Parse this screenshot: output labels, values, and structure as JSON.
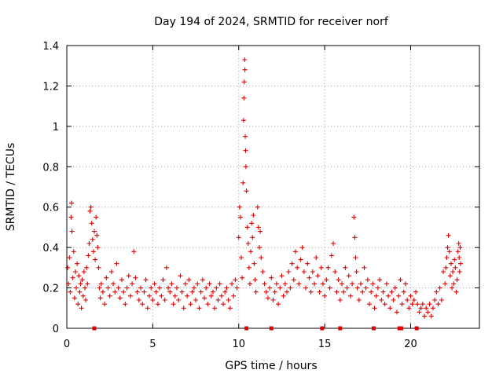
{
  "chart_data": {
    "type": "scatter",
    "title": "Day 194 of 2024, SRMTID for receiver norf",
    "xlabel": "GPS time / hours",
    "ylabel": "SRMTID / TECUs",
    "xlim": [
      0,
      24
    ],
    "ylim": [
      0,
      1.4
    ],
    "xticks": [
      0,
      5,
      10,
      15,
      20
    ],
    "yticks": [
      0,
      0.2,
      0.4,
      0.6,
      0.8,
      1,
      1.2,
      1.4
    ],
    "xtick_labels": [
      "0",
      "5",
      "10",
      "15",
      "20"
    ],
    "ytick_labels": [
      "0",
      "0.2",
      "0.4",
      "0.6",
      "0.8",
      "1",
      "1.2",
      "1.4"
    ],
    "grid": true,
    "marker": "+",
    "color": "#e00000",
    "series": [
      {
        "name": "SRMTID",
        "points": [
          [
            0.05,
            0.3
          ],
          [
            0.1,
            0.22
          ],
          [
            0.15,
            0.35
          ],
          [
            0.2,
            0.18
          ],
          [
            0.25,
            0.55
          ],
          [
            0.28,
            0.62
          ],
          [
            0.3,
            0.48
          ],
          [
            0.35,
            0.25
          ],
          [
            0.4,
            0.38
          ],
          [
            0.45,
            0.15
          ],
          [
            0.5,
            0.28
          ],
          [
            0.55,
            0.2
          ],
          [
            0.6,
            0.32
          ],
          [
            0.65,
            0.12
          ],
          [
            0.7,
            0.26
          ],
          [
            0.75,
            0.18
          ],
          [
            0.8,
            0.22
          ],
          [
            0.85,
            0.1
          ],
          [
            0.9,
            0.24
          ],
          [
            0.95,
            0.16
          ],
          [
            1.0,
            0.28
          ],
          [
            1.05,
            0.2
          ],
          [
            1.1,
            0.14
          ],
          [
            1.15,
            0.3
          ],
          [
            1.2,
            0.22
          ],
          [
            1.25,
            0.36
          ],
          [
            1.3,
            0.42
          ],
          [
            1.35,
            0.58
          ],
          [
            1.4,
            0.6
          ],
          [
            1.45,
            0.52
          ],
          [
            1.5,
            0.44
          ],
          [
            1.55,
            0.38
          ],
          [
            1.6,
            0.48
          ],
          [
            1.65,
            0.34
          ],
          [
            1.7,
            0.55
          ],
          [
            1.75,
            0.46
          ],
          [
            1.8,
            0.4
          ],
          [
            1.85,
            0.3
          ],
          [
            1.9,
            0.2
          ],
          [
            1.95,
            0.15
          ],
          [
            2.0,
            0.22
          ],
          [
            2.1,
            0.18
          ],
          [
            2.2,
            0.12
          ],
          [
            2.3,
            0.25
          ],
          [
            2.4,
            0.2
          ],
          [
            2.5,
            0.16
          ],
          [
            2.6,
            0.28
          ],
          [
            2.7,
            0.22
          ],
          [
            2.8,
            0.18
          ],
          [
            2.9,
            0.32
          ],
          [
            3.0,
            0.2
          ],
          [
            3.1,
            0.15
          ],
          [
            3.2,
            0.24
          ],
          [
            3.3,
            0.18
          ],
          [
            3.4,
            0.12
          ],
          [
            3.5,
            0.2
          ],
          [
            3.6,
            0.26
          ],
          [
            3.7,
            0.16
          ],
          [
            3.8,
            0.22
          ],
          [
            3.9,
            0.38
          ],
          [
            4.0,
            0.25
          ],
          [
            4.1,
            0.18
          ],
          [
            4.2,
            0.14
          ],
          [
            4.3,
            0.2
          ],
          [
            4.4,
            0.12
          ],
          [
            4.5,
            0.18
          ],
          [
            4.6,
            0.24
          ],
          [
            4.7,
            0.1
          ],
          [
            4.8,
            0.16
          ],
          [
            4.9,
            0.2
          ],
          [
            5.0,
            0.14
          ],
          [
            5.1,
            0.22
          ],
          [
            5.2,
            0.18
          ],
          [
            5.3,
            0.12
          ],
          [
            5.4,
            0.2
          ],
          [
            5.5,
            0.16
          ],
          [
            5.6,
            0.24
          ],
          [
            5.7,
            0.14
          ],
          [
            5.8,
            0.3
          ],
          [
            5.9,
            0.2
          ],
          [
            6.0,
            0.18
          ],
          [
            6.1,
            0.22
          ],
          [
            6.2,
            0.12
          ],
          [
            6.3,
            0.16
          ],
          [
            6.4,
            0.2
          ],
          [
            6.5,
            0.14
          ],
          [
            6.6,
            0.26
          ],
          [
            6.7,
            0.18
          ],
          [
            6.8,
            0.1
          ],
          [
            6.9,
            0.22
          ],
          [
            7.0,
            0.16
          ],
          [
            7.1,
            0.24
          ],
          [
            7.2,
            0.12
          ],
          [
            7.3,
            0.18
          ],
          [
            7.4,
            0.2
          ],
          [
            7.5,
            0.14
          ],
          [
            7.6,
            0.22
          ],
          [
            7.7,
            0.1
          ],
          [
            7.8,
            0.18
          ],
          [
            7.9,
            0.24
          ],
          [
            8.0,
            0.15
          ],
          [
            8.1,
            0.2
          ],
          [
            8.2,
            0.12
          ],
          [
            8.3,
            0.22
          ],
          [
            8.4,
            0.16
          ],
          [
            8.5,
            0.18
          ],
          [
            8.6,
            0.1
          ],
          [
            8.7,
            0.2
          ],
          [
            8.8,
            0.14
          ],
          [
            8.9,
            0.22
          ],
          [
            9.0,
            0.16
          ],
          [
            9.1,
            0.12
          ],
          [
            9.2,
            0.18
          ],
          [
            9.3,
            0.2
          ],
          [
            9.4,
            0.14
          ],
          [
            9.5,
            0.1
          ],
          [
            9.6,
            0.22
          ],
          [
            9.7,
            0.16
          ],
          [
            9.8,
            0.24
          ],
          [
            9.9,
            0.2
          ],
          [
            10.0,
            0.45
          ],
          [
            10.05,
            0.6
          ],
          [
            10.1,
            0.55
          ],
          [
            10.15,
            0.35
          ],
          [
            10.2,
            0.25
          ],
          [
            10.25,
            0.72
          ],
          [
            10.28,
            1.03
          ],
          [
            10.3,
            1.14
          ],
          [
            10.32,
            1.22
          ],
          [
            10.34,
            1.33
          ],
          [
            10.36,
            1.28
          ],
          [
            10.38,
            0.95
          ],
          [
            10.4,
            0.88
          ],
          [
            10.42,
            0.8
          ],
          [
            10.45,
            0.68
          ],
          [
            10.5,
            0.5
          ],
          [
            10.55,
            0.42
          ],
          [
            10.6,
            0.3
          ],
          [
            10.65,
            0.22
          ],
          [
            10.7,
            0.38
          ],
          [
            10.75,
            0.52
          ],
          [
            10.8,
            0.45
          ],
          [
            10.85,
            0.56
          ],
          [
            10.9,
            0.32
          ],
          [
            10.95,
            0.24
          ],
          [
            11.0,
            0.18
          ],
          [
            11.1,
            0.6
          ],
          [
            11.15,
            0.5
          ],
          [
            11.2,
            0.4
          ],
          [
            11.25,
            0.48
          ],
          [
            11.3,
            0.35
          ],
          [
            11.4,
            0.28
          ],
          [
            11.5,
            0.22
          ],
          [
            11.6,
            0.18
          ],
          [
            11.7,
            0.15
          ],
          [
            11.8,
            0.2
          ],
          [
            11.9,
            0.25
          ],
          [
            12.0,
            0.14
          ],
          [
            12.1,
            0.18
          ],
          [
            12.2,
            0.22
          ],
          [
            12.3,
            0.12
          ],
          [
            12.4,
            0.2
          ],
          [
            12.5,
            0.26
          ],
          [
            12.6,
            0.16
          ],
          [
            12.7,
            0.22
          ],
          [
            12.8,
            0.18
          ],
          [
            12.9,
            0.28
          ],
          [
            13.0,
            0.2
          ],
          [
            13.1,
            0.32
          ],
          [
            13.2,
            0.24
          ],
          [
            13.3,
            0.38
          ],
          [
            13.4,
            0.3
          ],
          [
            13.5,
            0.22
          ],
          [
            13.6,
            0.34
          ],
          [
            13.7,
            0.4
          ],
          [
            13.8,
            0.28
          ],
          [
            13.9,
            0.2
          ],
          [
            14.0,
            0.32
          ],
          [
            14.1,
            0.25
          ],
          [
            14.2,
            0.18
          ],
          [
            14.3,
            0.28
          ],
          [
            14.4,
            0.22
          ],
          [
            14.5,
            0.35
          ],
          [
            14.6,
            0.26
          ],
          [
            14.7,
            0.18
          ],
          [
            14.8,
            0.3
          ],
          [
            14.9,
            0.22
          ],
          [
            15.0,
            0.16
          ],
          [
            15.1,
            0.24
          ],
          [
            15.2,
            0.3
          ],
          [
            15.3,
            0.2
          ],
          [
            15.4,
            0.36
          ],
          [
            15.5,
            0.42
          ],
          [
            15.6,
            0.28
          ],
          [
            15.7,
            0.18
          ],
          [
            15.8,
            0.24
          ],
          [
            15.9,
            0.14
          ],
          [
            16.0,
            0.22
          ],
          [
            16.1,
            0.18
          ],
          [
            16.2,
            0.3
          ],
          [
            16.3,
            0.2
          ],
          [
            16.4,
            0.26
          ],
          [
            16.5,
            0.16
          ],
          [
            16.6,
            0.22
          ],
          [
            16.7,
            0.55
          ],
          [
            16.75,
            0.45
          ],
          [
            16.8,
            0.35
          ],
          [
            16.85,
            0.28
          ],
          [
            16.9,
            0.2
          ],
          [
            17.0,
            0.14
          ],
          [
            17.1,
            0.22
          ],
          [
            17.2,
            0.18
          ],
          [
            17.3,
            0.3
          ],
          [
            17.4,
            0.2
          ],
          [
            17.5,
            0.24
          ],
          [
            17.6,
            0.12
          ],
          [
            17.7,
            0.18
          ],
          [
            17.8,
            0.22
          ],
          [
            17.9,
            0.1
          ],
          [
            18.0,
            0.16
          ],
          [
            18.1,
            0.2
          ],
          [
            18.2,
            0.24
          ],
          [
            18.3,
            0.14
          ],
          [
            18.4,
            0.18
          ],
          [
            18.5,
            0.12
          ],
          [
            18.6,
            0.22
          ],
          [
            18.7,
            0.16
          ],
          [
            18.8,
            0.1
          ],
          [
            18.9,
            0.18
          ],
          [
            19.0,
            0.14
          ],
          [
            19.1,
            0.2
          ],
          [
            19.2,
            0.08
          ],
          [
            19.3,
            0.16
          ],
          [
            19.4,
            0.24
          ],
          [
            19.5,
            0.12
          ],
          [
            19.6,
            0.18
          ],
          [
            19.7,
            0.22
          ],
          [
            19.8,
            0.14
          ],
          [
            19.9,
            0.1
          ],
          [
            20.0,
            0.16
          ],
          [
            20.1,
            0.12
          ],
          [
            20.2,
            0.14
          ],
          [
            20.3,
            0.18
          ],
          [
            20.4,
            0.12
          ],
          [
            20.5,
            0.08
          ],
          [
            20.6,
            0.1
          ],
          [
            20.7,
            0.12
          ],
          [
            20.8,
            0.06
          ],
          [
            20.9,
            0.1
          ],
          [
            21.0,
            0.08
          ],
          [
            21.1,
            0.12
          ],
          [
            21.2,
            0.06
          ],
          [
            21.3,
            0.1
          ],
          [
            21.4,
            0.14
          ],
          [
            21.5,
            0.18
          ],
          [
            21.6,
            0.12
          ],
          [
            21.7,
            0.2
          ],
          [
            21.8,
            0.14
          ],
          [
            21.9,
            0.28
          ],
          [
            22.0,
            0.22
          ],
          [
            22.05,
            0.3
          ],
          [
            22.1,
            0.35
          ],
          [
            22.15,
            0.4
          ],
          [
            22.2,
            0.46
          ],
          [
            22.25,
            0.38
          ],
          [
            22.3,
            0.26
          ],
          [
            22.35,
            0.32
          ],
          [
            22.4,
            0.2
          ],
          [
            22.45,
            0.28
          ],
          [
            22.5,
            0.22
          ],
          [
            22.55,
            0.34
          ],
          [
            22.6,
            0.3
          ],
          [
            22.65,
            0.18
          ],
          [
            22.7,
            0.24
          ],
          [
            22.75,
            0.38
          ],
          [
            22.8,
            0.42
          ],
          [
            22.82,
            0.35
          ],
          [
            22.85,
            0.28
          ],
          [
            22.88,
            0.4
          ],
          [
            22.9,
            0.32
          ]
        ]
      }
    ],
    "baseline_markers": [
      1.6,
      10.45,
      11.9,
      14.85,
      15.9,
      17.85,
      19.35,
      19.45,
      20.35
    ]
  }
}
